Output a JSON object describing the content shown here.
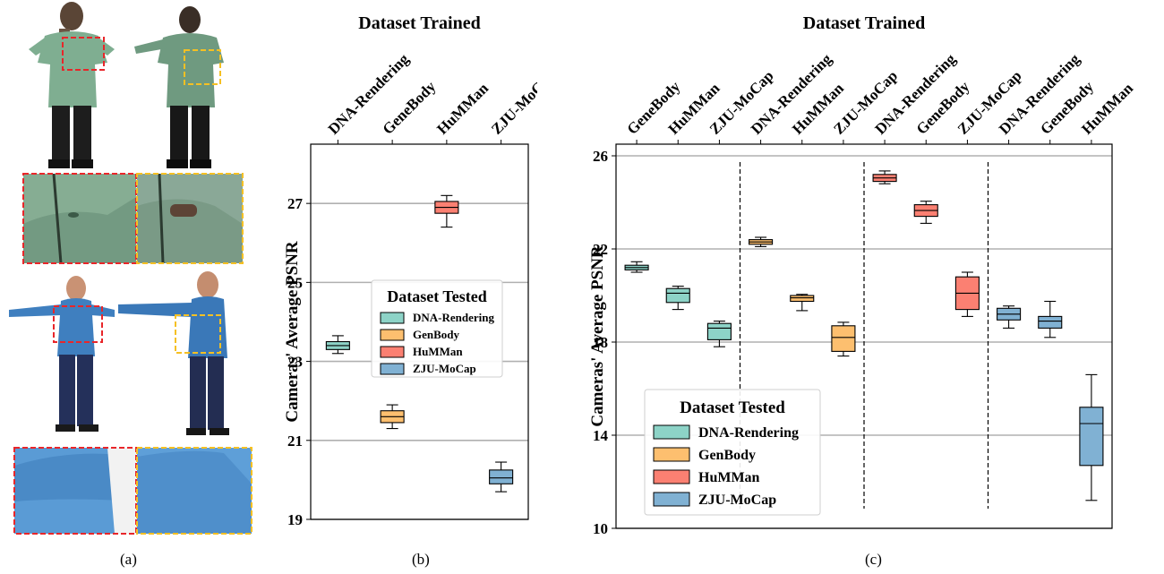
{
  "panels": {
    "a": {
      "label": "(a)"
    },
    "b": {
      "label": "(b)"
    },
    "c": {
      "label": "(c)"
    }
  },
  "colors": {
    "DNA-Rendering": "#8dd3c7",
    "GenBody": "#fdbf6f",
    "HuMMan": "#fb8072",
    "ZJU-MoCap": "#80b1d3",
    "grid": "#b0b0b0",
    "crop_red": "#e8262a",
    "crop_yellow": "#f5c023",
    "jacket": "#7fae91",
    "shirt": "#3f7fbf"
  },
  "chart_data": [
    {
      "type": "box",
      "title": "Dataset Trained",
      "ylabel": "Cameras' Average PSNR",
      "ylim": [
        19,
        28.5
      ],
      "yticks": [
        19,
        21,
        23,
        25,
        27
      ],
      "grid": true,
      "categories": [
        "DNA-Rendering",
        "GeneBody",
        "HuMMan",
        "ZJU-MoCap"
      ],
      "legend": {
        "title": "Dataset Tested",
        "position": "center-right",
        "entries": [
          "DNA-Rendering",
          "GenBody",
          "HuMMan",
          "ZJU-MoCap"
        ]
      },
      "boxes": [
        {
          "category": "DNA-Rendering",
          "tested": "DNA-Rendering",
          "min": 23.2,
          "q1": 23.3,
          "median": 23.4,
          "q3": 23.5,
          "max": 23.65
        },
        {
          "category": "GeneBody",
          "tested": "GenBody",
          "min": 21.3,
          "q1": 21.45,
          "median": 21.6,
          "q3": 21.75,
          "max": 21.9
        },
        {
          "category": "HuMMan",
          "tested": "HuMMan",
          "min": 26.4,
          "q1": 26.75,
          "median": 26.9,
          "q3": 27.05,
          "max": 27.2
        },
        {
          "category": "ZJU-MoCap",
          "tested": "ZJU-MoCap",
          "min": 19.7,
          "q1": 19.9,
          "median": 20.05,
          "q3": 20.25,
          "max": 20.45
        }
      ]
    },
    {
      "type": "box",
      "title": "Dataset Trained",
      "ylabel": "Cameras' Average PSNR",
      "ylim": [
        10,
        26.5
      ],
      "yticks": [
        10,
        14,
        18,
        22,
        26
      ],
      "grid": true,
      "categories": [
        "GeneBody",
        "HuMMan",
        "ZJU-MoCap",
        "DNA-Rendering",
        "HuMMan",
        "ZJU-MoCap",
        "DNA-Rendering",
        "GeneBody",
        "ZJU-MoCap",
        "DNA-Rendering",
        "GeneBody",
        "HuMMan"
      ],
      "group_separators_after": [
        3,
        6,
        9
      ],
      "legend": {
        "title": "Dataset Tested",
        "position": "lower-left",
        "entries": [
          "DNA-Rendering",
          "GenBody",
          "HuMMan",
          "ZJU-MoCap"
        ]
      },
      "boxes": [
        {
          "category": "GeneBody",
          "tested": "DNA-Rendering",
          "min": 21.0,
          "q1": 21.1,
          "median": 21.2,
          "q3": 21.3,
          "max": 21.45
        },
        {
          "category": "HuMMan",
          "tested": "DNA-Rendering",
          "min": 19.4,
          "q1": 19.7,
          "median": 20.1,
          "q3": 20.3,
          "max": 20.4
        },
        {
          "category": "ZJU-MoCap",
          "tested": "DNA-Rendering",
          "min": 17.8,
          "q1": 18.1,
          "median": 18.6,
          "q3": 18.8,
          "max": 18.9
        },
        {
          "category": "DNA-Rendering",
          "tested": "GenBody",
          "min": 22.1,
          "q1": 22.2,
          "median": 22.3,
          "q3": 22.4,
          "max": 22.5
        },
        {
          "category": "HuMMan",
          "tested": "GenBody",
          "min": 19.35,
          "q1": 19.75,
          "median": 19.9,
          "q3": 20.0,
          "max": 20.05
        },
        {
          "category": "ZJU-MoCap",
          "tested": "GenBody",
          "min": 17.4,
          "q1": 17.6,
          "median": 18.2,
          "q3": 18.7,
          "max": 18.85
        },
        {
          "category": "DNA-Rendering",
          "tested": "HuMMan",
          "min": 24.8,
          "q1": 24.9,
          "median": 25.05,
          "q3": 25.2,
          "max": 25.35
        },
        {
          "category": "GeneBody",
          "tested": "HuMMan",
          "min": 23.1,
          "q1": 23.4,
          "median": 23.65,
          "q3": 23.9,
          "max": 24.05
        },
        {
          "category": "ZJU-MoCap",
          "tested": "HuMMan",
          "min": 19.1,
          "q1": 19.4,
          "median": 20.1,
          "q3": 20.8,
          "max": 21.0
        },
        {
          "category": "DNA-Rendering",
          "tested": "ZJU-MoCap",
          "min": 18.6,
          "q1": 18.95,
          "median": 19.2,
          "q3": 19.45,
          "max": 19.55
        },
        {
          "category": "GeneBody",
          "tested": "ZJU-MoCap",
          "min": 18.2,
          "q1": 18.6,
          "median": 18.9,
          "q3": 19.1,
          "max": 19.75
        },
        {
          "category": "HuMMan",
          "tested": "ZJU-MoCap",
          "min": 11.2,
          "q1": 12.7,
          "median": 14.5,
          "q3": 15.2,
          "max": 16.6
        }
      ]
    }
  ]
}
